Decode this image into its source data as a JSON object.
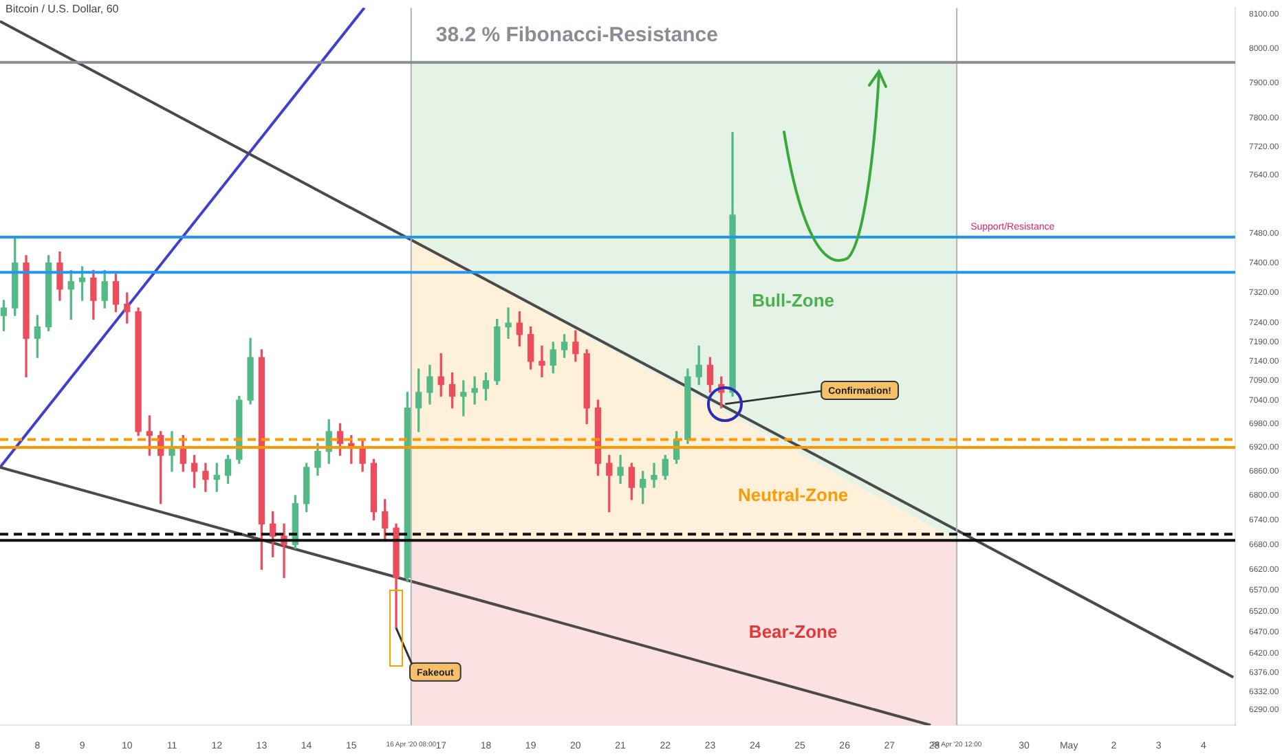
{
  "chart_data": {
    "type": "candlestick",
    "title": "Bitcoin / U.S. Dollar, 60",
    "x": [
      "2020-04-07T06:00",
      "2020-04-07T12:00",
      "2020-04-07T18:00",
      "2020-04-08T00:00",
      "2020-04-08T06:00",
      "2020-04-08T12:00",
      "2020-04-08T18:00",
      "2020-04-09T00:00",
      "2020-04-09T06:00",
      "2020-04-09T12:00",
      "2020-04-09T18:00",
      "2020-04-10T00:00",
      "2020-04-10T06:00",
      "2020-04-10T12:00",
      "2020-04-10T18:00",
      "2020-04-11T00:00",
      "2020-04-11T06:00",
      "2020-04-11T12:00",
      "2020-04-11T18:00",
      "2020-04-12T00:00",
      "2020-04-12T06:00",
      "2020-04-12T12:00",
      "2020-04-12T18:00",
      "2020-04-13T00:00",
      "2020-04-13T06:00",
      "2020-04-13T12:00",
      "2020-04-13T18:00",
      "2020-04-14T00:00",
      "2020-04-14T06:00",
      "2020-04-14T12:00",
      "2020-04-14T18:00",
      "2020-04-15T00:00",
      "2020-04-15T06:00",
      "2020-04-15T12:00",
      "2020-04-15T18:00",
      "2020-04-16T00:00",
      "2020-04-16T06:00",
      "2020-04-16T12:00",
      "2020-04-16T18:00",
      "2020-04-17T00:00",
      "2020-04-17T06:00",
      "2020-04-17T12:00",
      "2020-04-17T18:00",
      "2020-04-18T00:00",
      "2020-04-18T06:00",
      "2020-04-18T12:00",
      "2020-04-18T18:00",
      "2020-04-19T00:00",
      "2020-04-19T06:00",
      "2020-04-19T12:00",
      "2020-04-19T18:00",
      "2020-04-20T00:00",
      "2020-04-20T06:00",
      "2020-04-20T12:00",
      "2020-04-20T18:00",
      "2020-04-21T00:00",
      "2020-04-21T06:00",
      "2020-04-21T12:00",
      "2020-04-21T18:00",
      "2020-04-22T00:00",
      "2020-04-22T06:00",
      "2020-04-22T12:00",
      "2020-04-22T18:00",
      "2020-04-23T00:00",
      "2020-04-23T06:00",
      "2020-04-23T12:00"
    ],
    "ohlc": [
      [
        7260,
        7300,
        7220,
        7280
      ],
      [
        7280,
        7470,
        7260,
        7400
      ],
      [
        7400,
        7420,
        7100,
        7200
      ],
      [
        7200,
        7260,
        7150,
        7230
      ],
      [
        7230,
        7420,
        7220,
        7400
      ],
      [
        7400,
        7430,
        7300,
        7330
      ],
      [
        7330,
        7380,
        7250,
        7350
      ],
      [
        7350,
        7390,
        7300,
        7360
      ],
      [
        7360,
        7380,
        7250,
        7300
      ],
      [
        7300,
        7380,
        7280,
        7350
      ],
      [
        7350,
        7370,
        7270,
        7290
      ],
      [
        7290,
        7320,
        7240,
        7270
      ],
      [
        7270,
        7280,
        6950,
        6960
      ],
      [
        6960,
        7000,
        6900,
        6950
      ],
      [
        6950,
        6960,
        6780,
        6900
      ],
      [
        6900,
        6960,
        6860,
        6920
      ],
      [
        6920,
        6950,
        6860,
        6880
      ],
      [
        6880,
        6900,
        6820,
        6860
      ],
      [
        6860,
        6880,
        6810,
        6840
      ],
      [
        6840,
        6880,
        6810,
        6850
      ],
      [
        6850,
        6900,
        6830,
        6890
      ],
      [
        6890,
        7050,
        6880,
        7040
      ],
      [
        7040,
        7200,
        7030,
        7150
      ],
      [
        7150,
        7170,
        6620,
        6730
      ],
      [
        6730,
        6760,
        6650,
        6700
      ],
      [
        6700,
        6730,
        6600,
        6680
      ],
      [
        6680,
        6800,
        6670,
        6780
      ],
      [
        6780,
        6880,
        6760,
        6870
      ],
      [
        6870,
        6930,
        6850,
        6910
      ],
      [
        6910,
        6990,
        6880,
        6960
      ],
      [
        6960,
        6980,
        6900,
        6930
      ],
      [
        6930,
        6950,
        6880,
        6920
      ],
      [
        6920,
        6940,
        6860,
        6880
      ],
      [
        6880,
        6890,
        6740,
        6760
      ],
      [
        6760,
        6790,
        6690,
        6720
      ],
      [
        6720,
        6730,
        6480,
        6600
      ],
      [
        6600,
        7060,
        6590,
        7020
      ],
      [
        7020,
        7120,
        6960,
        7060
      ],
      [
        7060,
        7130,
        7030,
        7100
      ],
      [
        7100,
        7160,
        7050,
        7080
      ],
      [
        7080,
        7110,
        7020,
        7050
      ],
      [
        7050,
        7090,
        7000,
        7060
      ],
      [
        7060,
        7100,
        7030,
        7070
      ],
      [
        7070,
        7110,
        7040,
        7090
      ],
      [
        7090,
        7250,
        7080,
        7230
      ],
      [
        7230,
        7280,
        7200,
        7240
      ],
      [
        7240,
        7270,
        7180,
        7210
      ],
      [
        7210,
        7230,
        7120,
        7140
      ],
      [
        7140,
        7180,
        7100,
        7130
      ],
      [
        7130,
        7190,
        7110,
        7170
      ],
      [
        7170,
        7210,
        7150,
        7190
      ],
      [
        7190,
        7220,
        7140,
        7160
      ],
      [
        7160,
        7170,
        6980,
        7020
      ],
      [
        7020,
        7040,
        6850,
        6880
      ],
      [
        6880,
        6900,
        6760,
        6850
      ],
      [
        6850,
        6900,
        6830,
        6870
      ],
      [
        6870,
        6880,
        6790,
        6820
      ],
      [
        6820,
        6860,
        6780,
        6840
      ],
      [
        6840,
        6880,
        6820,
        6850
      ],
      [
        6850,
        6900,
        6840,
        6890
      ],
      [
        6890,
        6960,
        6880,
        6940
      ],
      [
        6940,
        7120,
        6930,
        7100
      ],
      [
        7100,
        7180,
        7080,
        7130
      ],
      [
        7130,
        7150,
        7060,
        7080
      ],
      [
        7080,
        7100,
        7020,
        7060
      ],
      [
        7060,
        7760,
        7050,
        7530
      ]
    ],
    "colors": [
      "#53b987",
      "#53b987",
      "#eb4d5c",
      "#53b987",
      "#53b987",
      "#eb4d5c",
      "#53b987",
      "#53b987",
      "#eb4d5c",
      "#53b987",
      "#eb4d5c",
      "#eb4d5c",
      "#eb4d5c",
      "#eb4d5c",
      "#eb4d5c",
      "#53b987",
      "#eb4d5c",
      "#eb4d5c",
      "#eb4d5c",
      "#53b987",
      "#53b987",
      "#53b987",
      "#53b987",
      "#eb4d5c",
      "#eb4d5c",
      "#eb4d5c",
      "#53b987",
      "#53b987",
      "#53b987",
      "#53b987",
      "#eb4d5c",
      "#eb4d5c",
      "#eb4d5c",
      "#eb4d5c",
      "#eb4d5c",
      "#eb4d5c",
      "#53b987",
      "#53b987",
      "#53b987",
      "#eb4d5c",
      "#eb4d5c",
      "#53b987",
      "#53b987",
      "#53b987",
      "#53b987",
      "#53b987",
      "#eb4d5c",
      "#eb4d5c",
      "#eb4d5c",
      "#53b987",
      "#53b987",
      "#eb4d5c",
      "#eb4d5c",
      "#eb4d5c",
      "#eb4d5c",
      "#53b987",
      "#eb4d5c",
      "#53b987",
      "#53b987",
      "#53b987",
      "#53b987",
      "#53b987",
      "#53b987",
      "#eb4d5c",
      "#eb4d5c",
      "#53b987"
    ],
    "series": [
      {
        "type": "line",
        "color": "#4a4a4a",
        "x": [
          "2020-04-07T04:00",
          "2020-05-04T16:00"
        ],
        "values": [
          8080,
          6365
        ]
      },
      {
        "type": "line",
        "color": "#4a4a4a",
        "x": [
          "2020-04-07T04:00",
          "2020-04-27T22:00"
        ],
        "values": [
          6870,
          6255
        ]
      },
      {
        "type": "line",
        "color": "#3f3fd0",
        "x": [
          "2020-04-07T04:00",
          "2020-04-15T07:00"
        ],
        "values": [
          6870,
          8120
        ]
      },
      {
        "type": "area",
        "name": "Neutral-Zone",
        "color": "#fff0d9",
        "x": [
          "2020-04-16T08:00",
          "2020-04-28T12:00"
        ],
        "values": [
          7465,
          6690
        ]
      }
    ],
    "xlim": [
      "2020-04-07T04:00",
      "2020-05-04T17:00"
    ],
    "xticks": [
      {
        "value": "2020-04-08",
        "label": "8"
      },
      {
        "value": "2020-04-09",
        "label": "9"
      },
      {
        "value": "2020-04-10",
        "label": "10"
      },
      {
        "value": "2020-04-11",
        "label": "11"
      },
      {
        "value": "2020-04-12",
        "label": "12"
      },
      {
        "value": "2020-04-13",
        "label": "13"
      },
      {
        "value": "2020-04-14",
        "label": "14"
      },
      {
        "value": "2020-04-15",
        "label": "15"
      },
      {
        "value": "2020-04-16T08:00",
        "label": "16 Apr '20 08:00"
      },
      {
        "value": "2020-04-17",
        "label": "17"
      },
      {
        "value": "2020-04-18",
        "label": "18"
      },
      {
        "value": "2020-04-19",
        "label": "19"
      },
      {
        "value": "2020-04-20",
        "label": "20"
      },
      {
        "value": "2020-04-21",
        "label": "21"
      },
      {
        "value": "2020-04-22",
        "label": "22"
      },
      {
        "value": "2020-04-23",
        "label": "23"
      },
      {
        "value": "2020-04-24",
        "label": "24"
      },
      {
        "value": "2020-04-25",
        "label": "25"
      },
      {
        "value": "2020-04-26",
        "label": "26"
      },
      {
        "value": "2020-04-27",
        "label": "27"
      },
      {
        "value": "2020-04-28",
        "label": "28"
      },
      {
        "value": "2020-04-28T12:00",
        "label": "28 Apr '20 12:00"
      },
      {
        "value": "2020-04-30",
        "label": "30"
      },
      {
        "value": "2020-05-01",
        "label": "May"
      },
      {
        "value": "2020-05-02",
        "label": "2"
      },
      {
        "value": "2020-05-03",
        "label": "3"
      },
      {
        "value": "2020-05-04",
        "label": "4"
      }
    ],
    "log": "y",
    "ylim": [
      6255,
      8120
    ],
    "yticks": [
      {
        "value": 6290,
        "label": "6290.00"
      },
      {
        "value": 6332,
        "label": "6332.00"
      },
      {
        "value": 6376,
        "label": "6376.00"
      },
      {
        "value": 6420,
        "label": "6420.00"
      },
      {
        "value": 6470,
        "label": "6470.00"
      },
      {
        "value": 6520,
        "label": "6520.00"
      },
      {
        "value": 6570,
        "label": "6570.00"
      },
      {
        "value": 6620,
        "label": "6620.00"
      },
      {
        "value": 6680,
        "label": "6680.00"
      },
      {
        "value": 6740,
        "label": "6740.00"
      },
      {
        "value": 6800,
        "label": "6800.00"
      },
      {
        "value": 6860,
        "label": "6860.00"
      },
      {
        "value": 6920,
        "label": "6920.00"
      },
      {
        "value": 6980,
        "label": "6980.00"
      },
      {
        "value": 7040,
        "label": "7040.00"
      },
      {
        "value": 7090,
        "label": "7090.00"
      },
      {
        "value": 7140,
        "label": "7140.00"
      },
      {
        "value": 7190,
        "label": "7190.00"
      },
      {
        "value": 7240,
        "label": "7240.00"
      },
      {
        "value": 7320,
        "label": "7320.00"
      },
      {
        "value": 7400,
        "label": "7400.00"
      },
      {
        "value": 7480,
        "label": "7480.00"
      },
      {
        "value": 7640,
        "label": "7640.00"
      },
      {
        "value": 7720,
        "label": "7720.00"
      },
      {
        "value": 7800,
        "label": "7800.00"
      },
      {
        "value": 7900,
        "label": "7900.00"
      },
      {
        "value": 8000,
        "label": "8000.00"
      },
      {
        "value": 8100,
        "label": "8100.00"
      }
    ],
    "ref_lines": [
      {
        "axis": "x",
        "value": "2020-04-16T08:00",
        "color": "#b0b3bb"
      },
      {
        "axis": "x",
        "value": "2020-04-28T12:00",
        "color": "#b0b3bb"
      },
      {
        "axis": "y",
        "value": 7960,
        "label": "38.2 % Fibonacci-Resistance",
        "color": "#8a8d96"
      },
      {
        "axis": "y",
        "value": 7470,
        "label": "Support/Resistance",
        "color": "#2196f3"
      },
      {
        "axis": "y",
        "value": 7375,
        "color": "#2196f3"
      },
      {
        "axis": "y",
        "value": 6940,
        "color": "#ff9800",
        "line_style": "dashed"
      },
      {
        "axis": "y",
        "value": 6920,
        "color": "#ff9800"
      },
      {
        "axis": "y",
        "value": 6705,
        "color": "#111111",
        "line_style": "dashed"
      },
      {
        "axis": "y",
        "value": 6690,
        "color": "#111111"
      }
    ],
    "bands": [
      {
        "axis": "y",
        "from": 6690,
        "to": 7960,
        "label": "Bull-Zone",
        "color": "#e4f3e5"
      },
      {
        "axis": "y",
        "from": 6255,
        "to": 6690,
        "label": "Bear-Zone",
        "color": "#fbe1e1"
      }
    ],
    "annotations": [
      {
        "text": "Confirmation!",
        "x": "2020-04-23T08:00",
        "y": 7030
      },
      {
        "text": "Fakeout",
        "x": "2020-04-16T00:00",
        "y": 6480
      }
    ],
    "legend": false,
    "grid": false,
    "marker": "none"
  }
}
